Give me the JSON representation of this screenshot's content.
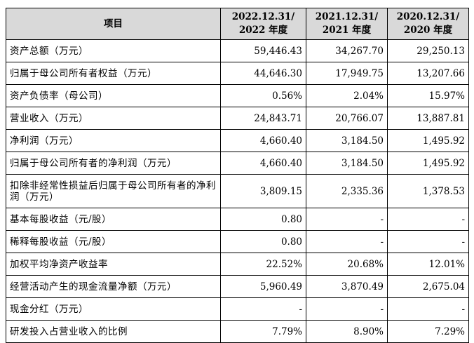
{
  "table": {
    "header": {
      "item": "项目",
      "columns": [
        {
          "line1": "2022.12.31/",
          "line2": "2022 年度"
        },
        {
          "line1": "2021.12.31/",
          "line2": "2021 年度"
        },
        {
          "line1": "2020.12.31/",
          "line2": "2020 年度"
        }
      ]
    },
    "rows": [
      {
        "label": "资产总额（万元）",
        "values": [
          "59,446.43",
          "34,267.70",
          "29,250.13"
        ]
      },
      {
        "label": "归属于母公司所有者权益（万元）",
        "values": [
          "44,646.30",
          "17,949.75",
          "13,207.66"
        ]
      },
      {
        "label": "资产负债率（母公司）",
        "values": [
          "0.56%",
          "2.04%",
          "15.97%"
        ]
      },
      {
        "label": "营业收入（万元）",
        "values": [
          "24,843.71",
          "20,766.07",
          "13,887.81"
        ]
      },
      {
        "label": "净利润（万元）",
        "values": [
          "4,660.40",
          "3,184.50",
          "1,495.92"
        ]
      },
      {
        "label": "归属于母公司所有者的净利润（万元）",
        "values": [
          "4,660.40",
          "3,184.50",
          "1,495.92"
        ]
      },
      {
        "label": "扣除非经常性损益后归属于母公司所有者的净利润（万元）",
        "values": [
          "3,809.15",
          "2,335.36",
          "1,378.53"
        ]
      },
      {
        "label": "基本每股收益（元/股）",
        "values": [
          "0.80",
          "-",
          "-"
        ]
      },
      {
        "label": "稀释每股收益（元/股）",
        "values": [
          "0.80",
          "-",
          "-"
        ]
      },
      {
        "label": "加权平均净资产收益率",
        "values": [
          "22.52%",
          "20.68%",
          "12.01%"
        ]
      },
      {
        "label": "经营活动产生的现金流量净额（万元）",
        "values": [
          "5,960.49",
          "3,870.49",
          "2,675.04"
        ]
      },
      {
        "label": "现金分红（万元）",
        "values": [
          "-",
          "-",
          "-"
        ]
      },
      {
        "label": "研发投入占营业收入的比例",
        "values": [
          "7.79%",
          "8.90%",
          "7.29%"
        ]
      }
    ]
  }
}
